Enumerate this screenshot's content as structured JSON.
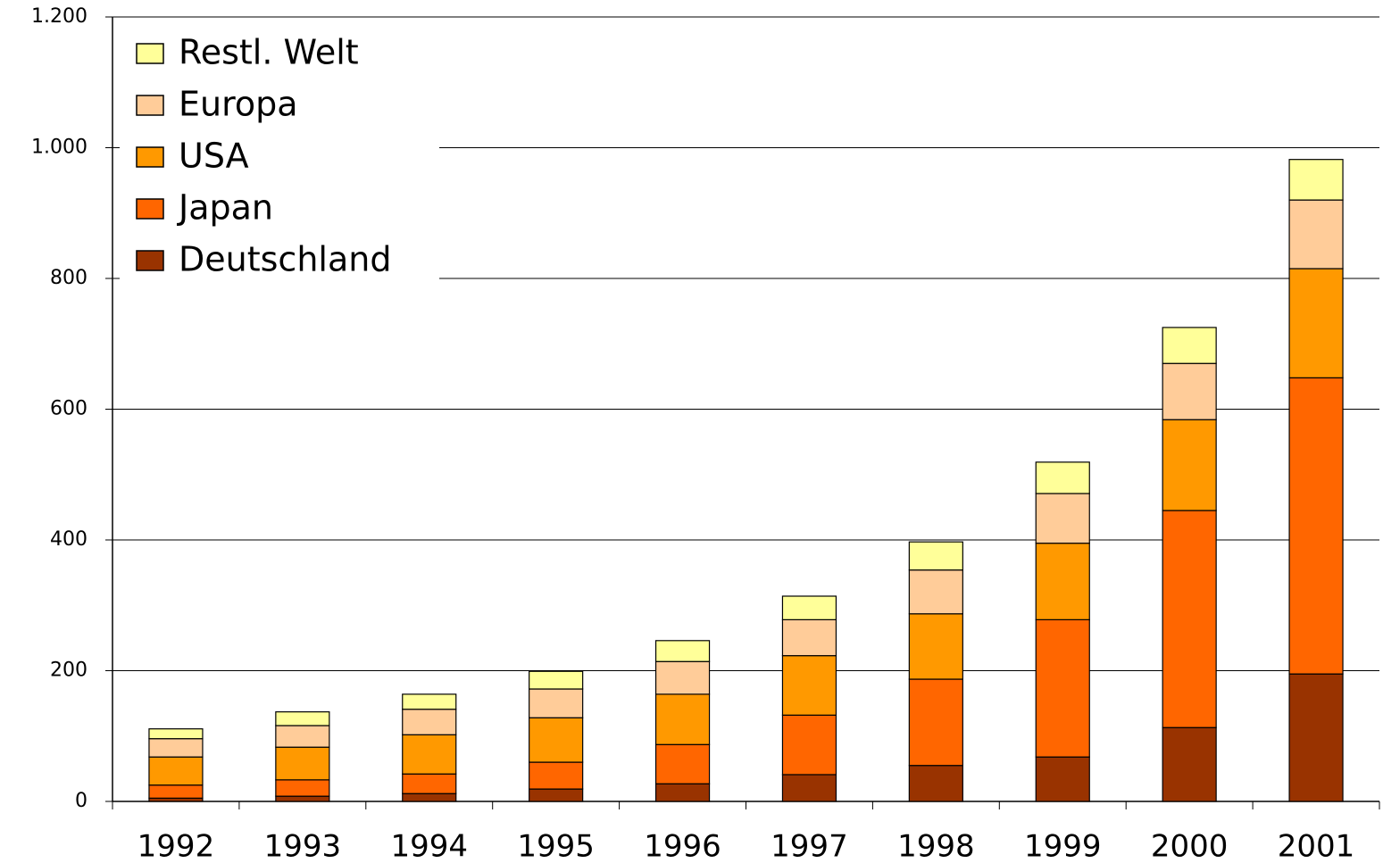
{
  "chart_data": {
    "type": "stacked_bar",
    "categories": [
      "1992",
      "1993",
      "1994",
      "1995",
      "1996",
      "1997",
      "1998",
      "1999",
      "2000",
      "2001"
    ],
    "series": [
      {
        "name": "Deutschland",
        "color": "#993300",
        "values": [
          5,
          8,
          12,
          19,
          27,
          41,
          55,
          68,
          113,
          195
        ]
      },
      {
        "name": "Japan",
        "color": "#ff6600",
        "values": [
          20,
          25,
          30,
          41,
          60,
          91,
          132,
          210,
          332,
          453
        ]
      },
      {
        "name": "USA",
        "color": "#ff9900",
        "values": [
          43,
          50,
          60,
          68,
          77,
          91,
          100,
          117,
          139,
          167
        ]
      },
      {
        "name": "Europa",
        "color": "#ffcc99",
        "values": [
          28,
          33,
          39,
          44,
          50,
          55,
          67,
          76,
          86,
          105
        ]
      },
      {
        "name": "Restl. Welt",
        "color": "#ffff99",
        "values": [
          15,
          21,
          23,
          27,
          32,
          36,
          43,
          48,
          55,
          62
        ]
      }
    ],
    "ylim": [
      0,
      1200
    ],
    "yticks": [
      0,
      200,
      400,
      600,
      800,
      {
        "value": 1000,
        "label": "1.000"
      },
      {
        "value": 1200,
        "label": "1.200"
      }
    ],
    "grid": true,
    "legend": "top-left"
  }
}
